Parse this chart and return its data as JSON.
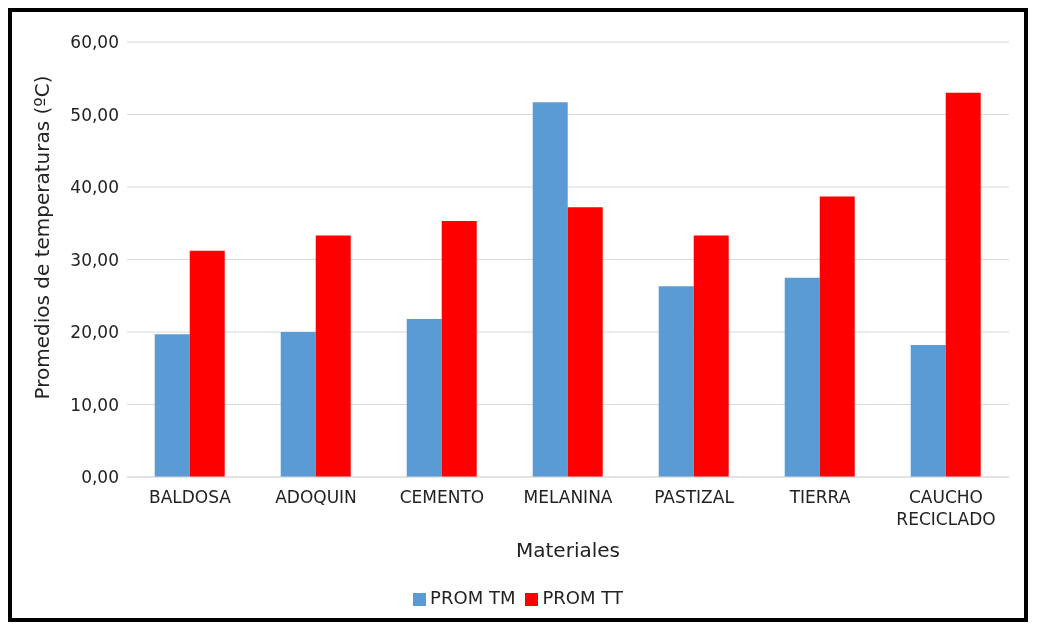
{
  "chart_data": {
    "type": "bar",
    "xlabel": "Materiales",
    "ylabel": "Promedios de temperaturas (ºC)",
    "categories": [
      "BALDOSA",
      "ADOQUIN",
      "CEMENTO",
      "MELANINA",
      "PASTIZAL",
      "TIERRA",
      "CAUCHO RECICLADO"
    ],
    "series": [
      {
        "name": "PROM TM",
        "color": "#5b9bd5",
        "values": [
          19.7,
          20.0,
          21.8,
          51.7,
          26.3,
          27.5,
          18.2
        ]
      },
      {
        "name": "PROM TT",
        "color": "#ff0000",
        "values": [
          31.2,
          33.3,
          35.3,
          37.2,
          33.3,
          38.7,
          53.0
        ]
      }
    ],
    "ylim": [
      0,
      60
    ],
    "yticks": [
      {
        "value": 0,
        "label": "0,00"
      },
      {
        "value": 10,
        "label": "10,00"
      },
      {
        "value": 20,
        "label": "20,00"
      },
      {
        "value": 30,
        "label": "30,00"
      },
      {
        "value": 40,
        "label": "40,00"
      },
      {
        "value": 50,
        "label": "50,00"
      },
      {
        "value": 60,
        "label": "60,00"
      }
    ],
    "grid": "y",
    "legend": "bottom"
  }
}
